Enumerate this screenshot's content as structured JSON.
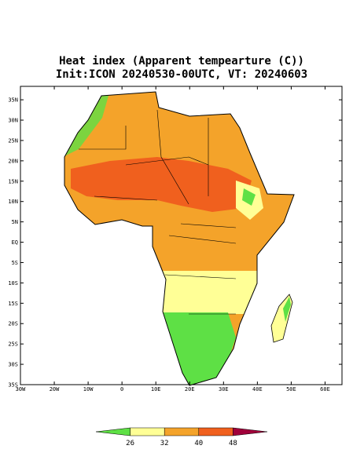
{
  "title": [
    "Heat index (Apparent tempearture (C))",
    "Init:ICON 20240530-00UTC, VT: 20240603"
  ],
  "map": {
    "xlim": [
      -30,
      65
    ],
    "ylim": [
      -35,
      38.3
    ],
    "xticks": [
      {
        "value": -30,
        "label": "30W"
      },
      {
        "value": -20,
        "label": "20W"
      },
      {
        "value": -10,
        "label": "10W"
      },
      0,
      {
        "value": 10,
        "label": "10E"
      },
      {
        "value": 20,
        "label": "20E"
      },
      {
        "value": 30,
        "label": "30E"
      },
      {
        "value": 40,
        "label": "40E"
      },
      {
        "value": 50,
        "label": "50E"
      },
      {
        "value": 60,
        "label": "60E"
      }
    ],
    "yticks": [
      {
        "value": 35,
        "label": "35N"
      },
      {
        "value": 30,
        "label": "30N"
      },
      {
        "value": 25,
        "label": "25N"
      },
      {
        "value": 20,
        "label": "20N"
      },
      {
        "value": 15,
        "label": "15N"
      },
      {
        "value": 10,
        "label": "10N"
      },
      {
        "value": 5,
        "label": "5N"
      },
      {
        "value": 0,
        "label": "EQ"
      },
      {
        "value": -5,
        "label": "5S"
      },
      {
        "value": -10,
        "label": "10S"
      },
      {
        "value": -15,
        "label": "15S"
      },
      {
        "value": -20,
        "label": "20S"
      },
      {
        "value": -25,
        "label": "25S"
      },
      {
        "value": -30,
        "label": "30S"
      },
      {
        "value": -35,
        "label": "35S"
      }
    ]
  },
  "colorbar": {
    "ticks": [
      26,
      32,
      40,
      48
    ],
    "colors": [
      "#5ee045",
      "#ffff96",
      "#f4a32a",
      "#f0601e",
      "#a0003a"
    ]
  }
}
